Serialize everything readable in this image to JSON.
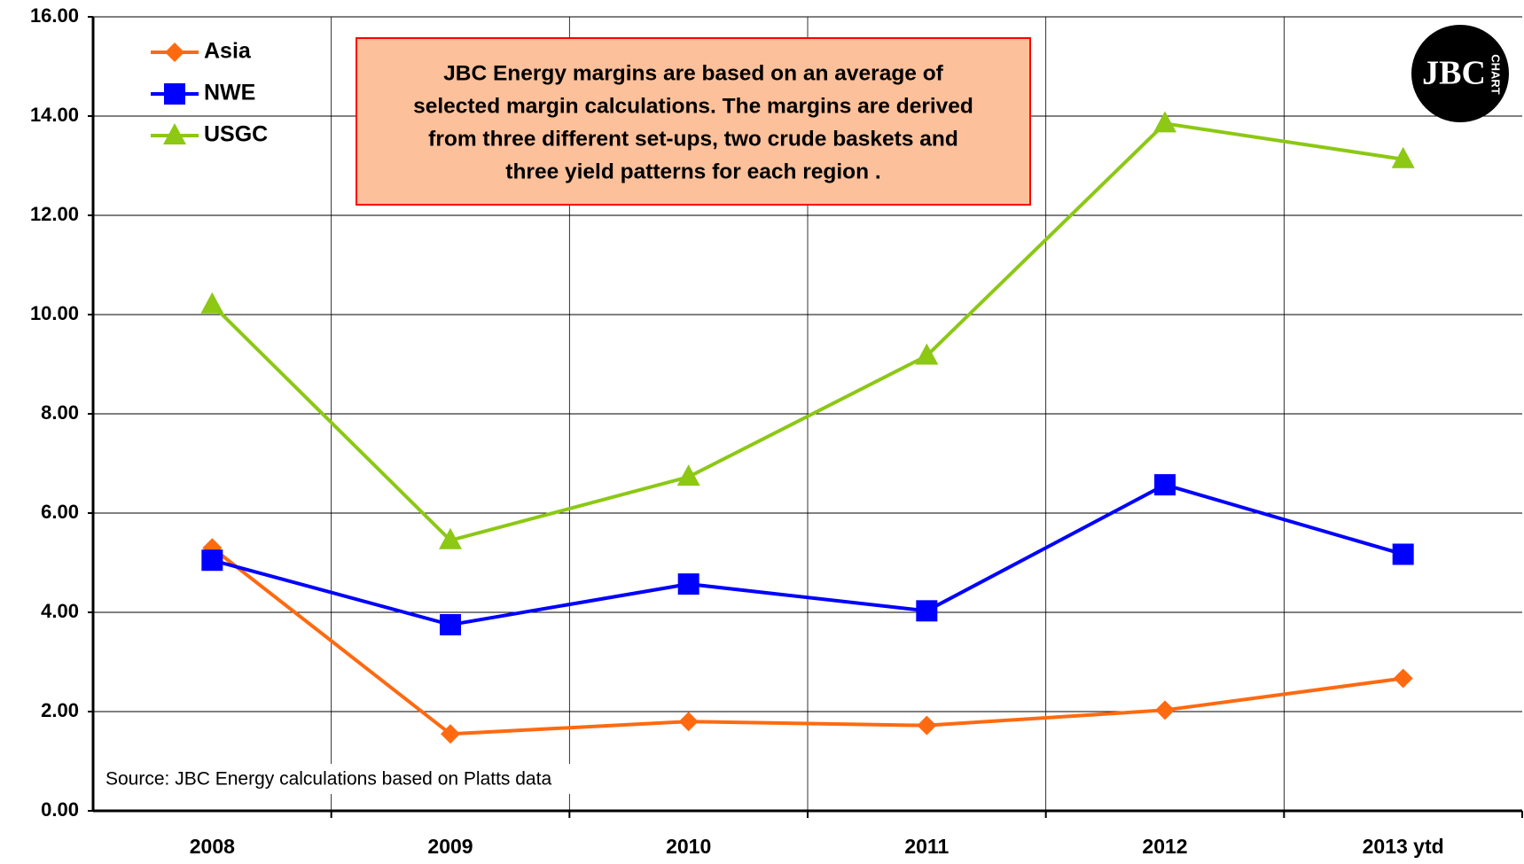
{
  "chart_data": {
    "type": "line",
    "categories": [
      "2008",
      "2009",
      "2010",
      "2011",
      "2012",
      "2013 ytd"
    ],
    "series": [
      {
        "name": "Asia",
        "color": "#ff6a10",
        "marker": "diamond",
        "values": [
          5.3,
          1.55,
          1.8,
          1.72,
          2.03,
          2.67
        ]
      },
      {
        "name": "NWE",
        "color": "#0000ff",
        "marker": "square",
        "values": [
          5.05,
          3.75,
          4.57,
          4.03,
          6.57,
          5.17
        ]
      },
      {
        "name": "USGC",
        "color": "#8cc814",
        "marker": "triangle",
        "values": [
          10.2,
          5.45,
          6.73,
          9.17,
          13.85,
          13.13
        ]
      }
    ],
    "ylim": [
      0,
      16
    ],
    "yticks": [
      {
        "value": 0,
        "label": "0.00"
      },
      {
        "value": 2,
        "label": "2.00"
      },
      {
        "value": 4,
        "label": "4.00"
      },
      {
        "value": 6,
        "label": "6.00"
      },
      {
        "value": 8,
        "label": "8.00"
      },
      {
        "value": 10,
        "label": "10.00"
      },
      {
        "value": 12,
        "label": "12.00"
      },
      {
        "value": 14,
        "label": "14.00"
      },
      {
        "value": 16,
        "label": "16.00"
      }
    ],
    "grid": true,
    "legend": "top-left",
    "annotation": [
      "JBC Energy margins are based on an average of",
      "selected margin calculations. The margins are derived",
      "from three different set-ups, two crude baskets and",
      "three yield patterns for each region ."
    ],
    "source": "Source: JBC Energy calculations based on Platts data",
    "logo": {
      "letters": "JBC",
      "caption": "CHART"
    }
  }
}
